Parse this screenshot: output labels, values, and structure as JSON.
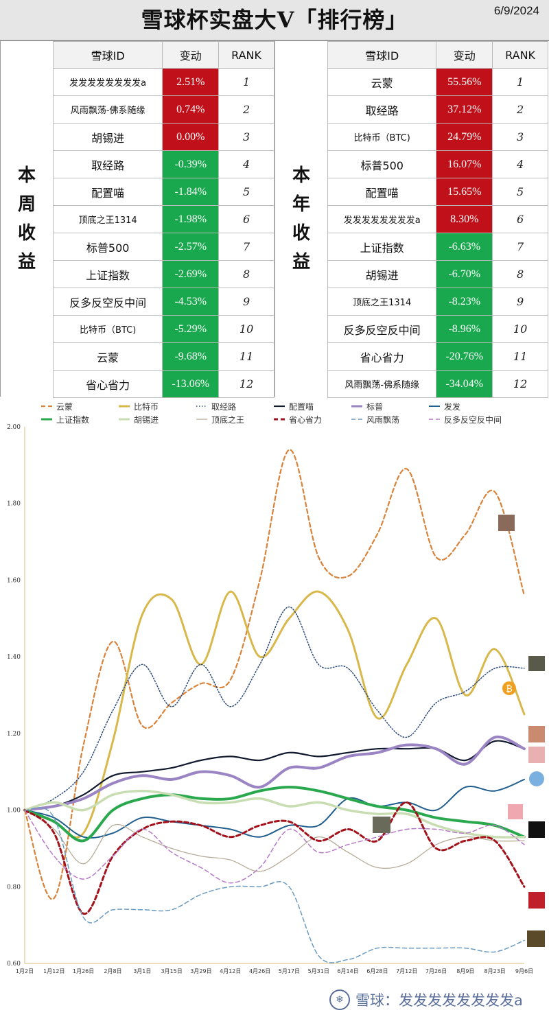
{
  "header": {
    "title": "雪球杯实盘大V「排行榜」",
    "date": "6/9/2024"
  },
  "weekly": {
    "label": "本周收益",
    "columns": [
      "雪球ID",
      "变动",
      "RANK"
    ],
    "rows": [
      {
        "name": "发发发发发发发发a",
        "change": "2.51%",
        "rank": "1",
        "positive": true
      },
      {
        "name": "风雨飘荡-佛系随缘",
        "change": "0.74%",
        "rank": "2",
        "positive": true
      },
      {
        "name": "胡锡进",
        "change": "0.00%",
        "rank": "3",
        "positive": true
      },
      {
        "name": "取经路",
        "change": "-0.39%",
        "rank": "4",
        "positive": false
      },
      {
        "name": "配置喵",
        "change": "-1.84%",
        "rank": "5",
        "positive": false
      },
      {
        "name": "顶底之王1314",
        "change": "-1.98%",
        "rank": "6",
        "positive": false
      },
      {
        "name": "标普500",
        "change": "-2.57%",
        "rank": "7",
        "positive": false
      },
      {
        "name": "上证指数",
        "change": "-2.69%",
        "rank": "8",
        "positive": false
      },
      {
        "name": "反多反空反中间",
        "change": "-4.53%",
        "rank": "9",
        "positive": false
      },
      {
        "name": "比特币（BTC)",
        "change": "-5.29%",
        "rank": "10",
        "positive": false
      },
      {
        "name": "云蒙",
        "change": "-9.68%",
        "rank": "11",
        "positive": false
      },
      {
        "name": "省心省力",
        "change": "-13.06%",
        "rank": "12",
        "positive": false
      }
    ]
  },
  "yearly": {
    "label": "本年收益",
    "columns": [
      "雪球ID",
      "变动",
      "RANK"
    ],
    "rows": [
      {
        "name": "云蒙",
        "change": "55.56%",
        "rank": "1",
        "positive": true
      },
      {
        "name": "取经路",
        "change": "37.12%",
        "rank": "2",
        "positive": true
      },
      {
        "name": "比特币（BTC)",
        "change": "24.79%",
        "rank": "3",
        "positive": true
      },
      {
        "name": "标普500",
        "change": "16.07%",
        "rank": "4",
        "positive": true
      },
      {
        "name": "配置喵",
        "change": "15.65%",
        "rank": "5",
        "positive": true
      },
      {
        "name": "发发发发发发发发a",
        "change": "8.30%",
        "rank": "6",
        "positive": true
      },
      {
        "name": "上证指数",
        "change": "-6.63%",
        "rank": "7",
        "positive": false
      },
      {
        "name": "胡锡进",
        "change": "-6.70%",
        "rank": "8",
        "positive": false
      },
      {
        "name": "顶底之王1314",
        "change": "-8.23%",
        "rank": "9",
        "positive": false
      },
      {
        "name": "反多反空反中间",
        "change": "-8.96%",
        "rank": "10",
        "positive": false
      },
      {
        "name": "省心省力",
        "change": "-20.76%",
        "rank": "11",
        "positive": false
      },
      {
        "name": "风雨飘荡-佛系随缘",
        "change": "-34.04%",
        "rank": "12",
        "positive": false
      }
    ]
  },
  "chart_data": {
    "type": "line",
    "x": [
      "1月2日",
      "1月12日",
      "1月26日",
      "2月8日",
      "3月1日",
      "3月15日",
      "3月29日",
      "4月12日",
      "4月26日",
      "5月17日",
      "5月31日",
      "6月14日",
      "6月28日",
      "7月12日",
      "7月26日",
      "8月9日",
      "8月23日",
      "9月6日"
    ],
    "ylim": [
      0.6,
      2.0
    ],
    "yticks": [
      "0.60",
      "0.80",
      "1.00",
      "1.20",
      "1.40",
      "1.60",
      "1.80",
      "2.00"
    ],
    "grid": false,
    "legend_position": "top",
    "series": [
      {
        "name": "云蒙",
        "color": "#d9823a",
        "style": "dashed",
        "width": 2.2,
        "values": [
          1.0,
          0.77,
          1.17,
          1.44,
          1.22,
          1.28,
          1.33,
          1.34,
          1.6,
          1.94,
          1.66,
          1.61,
          1.72,
          1.89,
          1.66,
          1.72,
          1.83,
          1.56
        ]
      },
      {
        "name": "比特币",
        "color": "#d8b84a",
        "style": "solid",
        "width": 3,
        "values": [
          1.0,
          0.97,
          0.94,
          1.18,
          1.51,
          1.55,
          1.38,
          1.57,
          1.4,
          1.5,
          1.57,
          1.47,
          1.24,
          1.38,
          1.5,
          1.3,
          1.42,
          1.25
        ]
      },
      {
        "name": "取经路",
        "color": "#2a4a7a",
        "style": "dotted",
        "width": 1.5,
        "values": [
          1.0,
          1.03,
          1.1,
          1.26,
          1.38,
          1.27,
          1.38,
          1.27,
          1.38,
          1.53,
          1.38,
          1.37,
          1.26,
          1.19,
          1.28,
          1.31,
          1.37,
          1.37
        ]
      },
      {
        "name": "配置喵",
        "color": "#111a2e",
        "style": "solid",
        "width": 2.2,
        "values": [
          1.0,
          1.01,
          1.04,
          1.09,
          1.1,
          1.11,
          1.13,
          1.14,
          1.13,
          1.15,
          1.14,
          1.15,
          1.16,
          1.16,
          1.16,
          1.13,
          1.18,
          1.16
        ]
      },
      {
        "name": "标普",
        "color": "#9b84c4",
        "style": "solid",
        "width": 4,
        "values": [
          1.0,
          1.01,
          1.03,
          1.07,
          1.09,
          1.08,
          1.1,
          1.09,
          1.06,
          1.11,
          1.11,
          1.14,
          1.15,
          1.17,
          1.16,
          1.12,
          1.19,
          1.16
        ]
      },
      {
        "name": "发发",
        "color": "#215f8f",
        "style": "solid",
        "width": 2,
        "values": [
          1.0,
          0.98,
          0.93,
          0.94,
          0.98,
          0.97,
          0.96,
          0.95,
          0.93,
          0.96,
          0.96,
          1.03,
          1.01,
          1.02,
          1.0,
          1.06,
          1.05,
          1.08
        ]
      },
      {
        "name": "上证指数",
        "color": "#2aa84e",
        "style": "solid",
        "width": 4,
        "values": [
          1.0,
          0.97,
          0.92,
          1.0,
          1.03,
          1.04,
          1.03,
          1.03,
          1.05,
          1.06,
          1.05,
          1.03,
          1.01,
          1.0,
          0.98,
          0.97,
          0.96,
          0.93
        ]
      },
      {
        "name": "胡锡进",
        "color": "#c9ddb3",
        "style": "solid",
        "width": 3.5,
        "values": [
          1.0,
          1.02,
          1.0,
          1.04,
          1.05,
          1.04,
          1.02,
          1.02,
          1.03,
          1.01,
          1.02,
          1.0,
          0.99,
          0.99,
          0.96,
          0.94,
          0.93,
          0.93
        ]
      },
      {
        "name": "顶底之王",
        "color": "#b6ac98",
        "style": "solid",
        "width": 1.3,
        "values": [
          1.0,
          0.95,
          0.86,
          0.96,
          0.93,
          0.9,
          0.88,
          0.87,
          0.84,
          0.88,
          0.93,
          0.89,
          0.85,
          0.86,
          0.91,
          0.93,
          0.92,
          0.92
        ]
      },
      {
        "name": "省心省力",
        "color": "#a3121a",
        "style": "dashed",
        "width": 3,
        "values": [
          1.0,
          0.94,
          0.73,
          0.88,
          0.95,
          0.97,
          0.96,
          0.93,
          0.96,
          0.97,
          0.92,
          0.95,
          0.92,
          1.02,
          0.9,
          0.92,
          0.92,
          0.8
        ]
      },
      {
        "name": "风雨飘荡",
        "color": "#6a9ac0",
        "style": "dashed",
        "width": 1.5,
        "values": [
          1.0,
          0.98,
          0.72,
          0.74,
          0.74,
          0.74,
          0.78,
          0.8,
          0.8,
          0.8,
          0.62,
          0.61,
          0.64,
          0.64,
          0.64,
          0.64,
          0.63,
          0.66
        ]
      },
      {
        "name": "反多反空反中间",
        "color": "#b57ac8",
        "style": "dashed",
        "width": 1.5,
        "values": [
          1.0,
          0.88,
          0.82,
          0.88,
          0.95,
          0.89,
          0.85,
          0.81,
          0.85,
          0.95,
          0.89,
          0.91,
          0.93,
          0.95,
          0.95,
          0.94,
          0.96,
          0.91
        ]
      }
    ]
  },
  "footer": {
    "text": "雪球：发发发发发发发发a",
    "logo_icon": "snowball-logo-icon"
  }
}
